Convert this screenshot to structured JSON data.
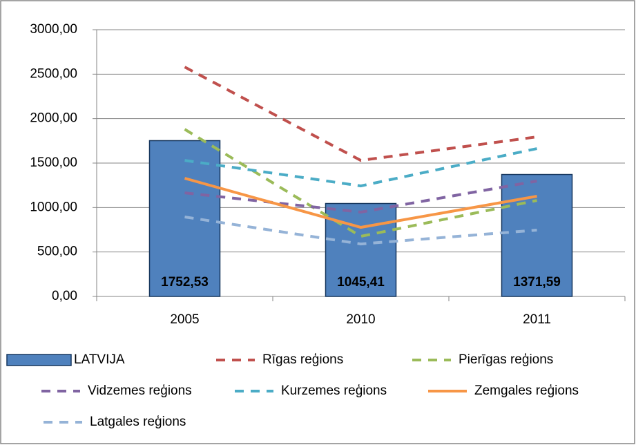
{
  "chart_data": {
    "type": "combo",
    "categories": [
      "2005",
      "2010",
      "2011"
    ],
    "ylim": [
      0,
      3000
    ],
    "yticks": [
      {
        "value": 0,
        "label": "0,00"
      },
      {
        "value": 500,
        "label": "500,00"
      },
      {
        "value": 1000,
        "label": "1000,00"
      },
      {
        "value": 1500,
        "label": "1500,00"
      },
      {
        "value": 2000,
        "label": "2000,00"
      },
      {
        "value": 2500,
        "label": "2500,00"
      },
      {
        "value": 3000,
        "label": "3000,00"
      }
    ],
    "grid": true,
    "legend": "bottom",
    "series": [
      {
        "name": "LATVIJA",
        "type": "bar",
        "color": "#4f81bd",
        "values": [
          1752.53,
          1045.41,
          1371.59
        ],
        "value_labels": [
          "1752,53",
          "1045,41",
          "1371,59"
        ]
      },
      {
        "name": "Rīgas reģions",
        "type": "line",
        "dashed": true,
        "color": "#c0504d",
        "values": [
          2580,
          1530,
          1795
        ]
      },
      {
        "name": "Pierīgas reģions",
        "type": "line",
        "dashed": true,
        "color": "#9bbb59",
        "values": [
          1880,
          676,
          1080
        ]
      },
      {
        "name": "Vidzemes reģions",
        "type": "line",
        "dashed": true,
        "color": "#8064a2",
        "values": [
          1165,
          948,
          1298
        ]
      },
      {
        "name": "Kurzemes reģions",
        "type": "line",
        "dashed": true,
        "color": "#4bacc6",
        "values": [
          1530,
          1243,
          1663
        ]
      },
      {
        "name": "Zemgales reģions",
        "type": "line",
        "dashed": false,
        "color": "#f79646",
        "values": [
          1329,
          777,
          1127
        ]
      },
      {
        "name": "Latgales reģions",
        "type": "line",
        "dashed": true,
        "color": "#95b3d7",
        "values": [
          894,
          590,
          746
        ]
      }
    ]
  }
}
